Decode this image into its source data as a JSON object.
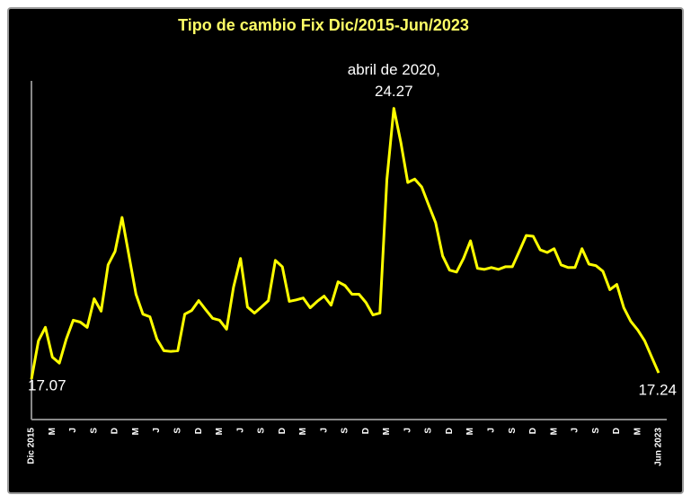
{
  "chart_data": {
    "type": "line",
    "title": "Tipo de cambio Fix Dic/2015-Jun/2023",
    "categories": [
      "Dic 2015",
      null,
      null,
      "M",
      null,
      null,
      "J",
      null,
      null,
      "S",
      null,
      null,
      "D",
      null,
      null,
      "M",
      null,
      null,
      "J",
      null,
      null,
      "S",
      null,
      null,
      "D",
      null,
      null,
      "M",
      null,
      null,
      "J",
      null,
      null,
      "S",
      null,
      null,
      "D",
      null,
      null,
      "M",
      null,
      null,
      "J",
      null,
      null,
      "S",
      null,
      null,
      "D",
      null,
      null,
      "M",
      null,
      null,
      "J",
      null,
      null,
      "S",
      null,
      null,
      "D",
      null,
      null,
      "M",
      null,
      null,
      "J",
      null,
      null,
      "S",
      null,
      null,
      "D",
      null,
      null,
      "M",
      null,
      null,
      "J",
      null,
      null,
      "S",
      null,
      null,
      "D",
      null,
      null,
      "M",
      null,
      null,
      "Jun 2023"
    ],
    "series": [
      {
        "color": "#ffff00",
        "values": [
          17.07,
          18.09,
          18.45,
          17.66,
          17.5,
          18.14,
          18.64,
          18.59,
          18.45,
          19.21,
          18.88,
          20.11,
          20.47,
          21.37,
          20.35,
          19.33,
          18.8,
          18.73,
          18.14,
          17.83,
          17.81,
          17.83,
          18.8,
          18.9,
          19.16,
          18.92,
          18.69,
          18.64,
          18.4,
          19.52,
          20.28,
          18.99,
          18.83,
          18.99,
          19.16,
          20.23,
          20.06,
          19.14,
          19.18,
          19.23,
          18.97,
          19.14,
          19.28,
          19.04,
          19.66,
          19.56,
          19.33,
          19.33,
          19.11,
          18.78,
          18.83,
          22.37,
          24.27,
          23.37,
          22.3,
          22.39,
          22.18,
          21.7,
          21.23,
          20.35,
          19.97,
          19.92,
          20.28,
          20.75,
          20.02,
          19.99,
          20.04,
          19.99,
          20.06,
          20.06,
          20.47,
          20.89,
          20.87,
          20.51,
          20.44,
          20.54,
          20.11,
          20.04,
          20.04,
          20.54,
          20.13,
          20.09,
          19.94,
          19.45,
          19.59,
          18.97,
          18.61,
          18.38,
          18.09,
          17.66,
          17.24
        ],
        "value_labels": [
          "17.07",
          null,
          null,
          null,
          null,
          null,
          null,
          null,
          null,
          null,
          null,
          null,
          null,
          null,
          null,
          null,
          null,
          null,
          null,
          null,
          null,
          null,
          null,
          null,
          null,
          null,
          null,
          null,
          null,
          null,
          null,
          null,
          null,
          null,
          null,
          null,
          null,
          null,
          null,
          null,
          null,
          null,
          null,
          null,
          null,
          null,
          null,
          null,
          null,
          null,
          null,
          null,
          "24.27",
          null,
          null,
          null,
          null,
          null,
          null,
          null,
          null,
          null,
          null,
          null,
          null,
          null,
          null,
          null,
          null,
          null,
          null,
          null,
          null,
          null,
          null,
          null,
          null,
          null,
          null,
          null,
          null,
          null,
          null,
          null,
          null,
          null,
          null,
          null,
          null,
          null,
          "17.24"
        ]
      }
    ],
    "annotation": "abril de 2020,",
    "ylim": [
      16,
      25
    ]
  }
}
